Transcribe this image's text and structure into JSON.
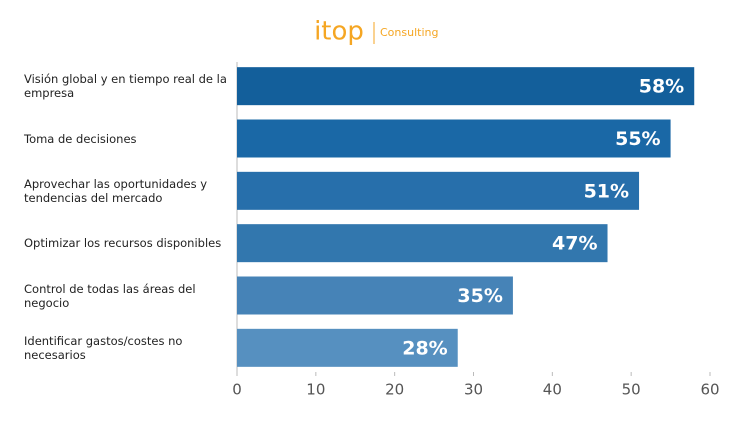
{
  "chart_data": {
    "type": "bar",
    "orientation": "horizontal",
    "logo": "itop",
    "logo_tagline": "Consulting",
    "categories": [
      "Visión global y en tiempo real de la empresa",
      "Toma de decisiones",
      "Aprovechar las oportunidades y tendencias del mercado",
      "Optimizar los recursos disponibles",
      "Control de todas las áreas del negocio",
      "Identificar gastos/costes no necesarios"
    ],
    "values": [
      58,
      55,
      51,
      47,
      35,
      28
    ],
    "value_labels": [
      "58%",
      "55%",
      "51%",
      "47%",
      "35%",
      "28%"
    ],
    "colors": [
      "#135f9b",
      "#1a68a6",
      "#276fab",
      "#3277ae",
      "#4683b7",
      "#5690c0"
    ],
    "xlim": [
      0,
      60
    ],
    "xticks": [
      0,
      10,
      20,
      30,
      40,
      50,
      60
    ]
  }
}
